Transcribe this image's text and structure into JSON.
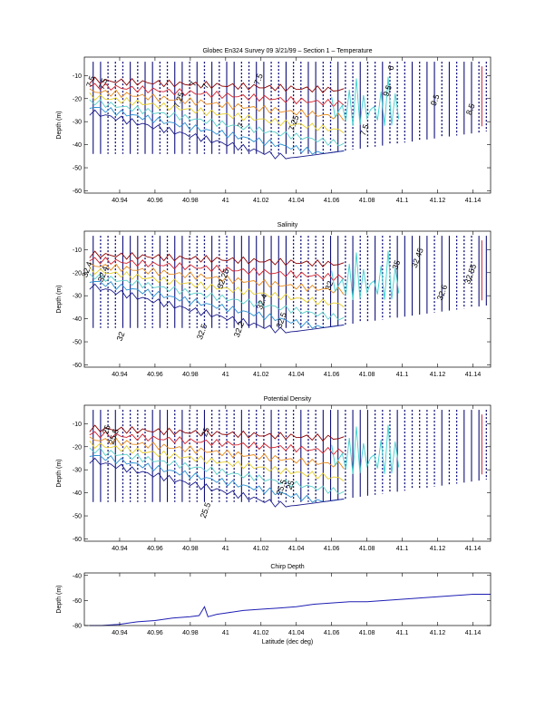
{
  "chart_data": [
    {
      "type": "contour",
      "title": "Globec En324 Survey 09 3/21/99 – Section 1 – Temperature",
      "xlabel": "",
      "ylabel": "Depth (m)",
      "xlim": [
        40.92,
        41.15
      ],
      "ylim": [
        -61,
        -2
      ],
      "xticks": [
        "40.94",
        "40.96",
        "40.98",
        "41",
        "41.02",
        "41.04",
        "41.06",
        "41.08",
        "41.1",
        "41.12",
        "41.14"
      ],
      "yticks": [
        "-10",
        "-20",
        "-30",
        "-40",
        "-50",
        "-60"
      ],
      "contour_labels": [
        {
          "text": "7.5",
          "x": 40.925,
          "y": -13
        },
        {
          "text": "7.5",
          "x": 40.932,
          "y": -14
        },
        {
          "text": "7.25",
          "x": 40.975,
          "y": -21
        },
        {
          "text": "7",
          "x": 40.983,
          "y": -14
        },
        {
          "text": "7",
          "x": 40.99,
          "y": -15
        },
        {
          "text": "7.5",
          "x": 41.02,
          "y": -12
        },
        {
          "text": "7",
          "x": 41.01,
          "y": -32
        },
        {
          "text": "7.25",
          "x": 41.04,
          "y": -31
        },
        {
          "text": "7.5",
          "x": 41.08,
          "y": -34
        },
        {
          "text": "6",
          "x": 41.095,
          "y": -7
        },
        {
          "text": "9.5",
          "x": 41.093,
          "y": -17
        },
        {
          "text": "9.5",
          "x": 41.12,
          "y": -21
        },
        {
          "text": "8.5",
          "x": 41.14,
          "y": -25
        }
      ]
    },
    {
      "type": "contour",
      "title": "Salinity",
      "xlabel": "",
      "ylabel": "Depth (m)",
      "xlim": [
        40.92,
        41.15
      ],
      "ylim": [
        -61,
        -2
      ],
      "xticks": [
        "40.94",
        "40.96",
        "40.98",
        "41",
        "41.02",
        "41.04",
        "41.06",
        "41.08",
        "41.1",
        "41.12",
        "41.14"
      ],
      "yticks": [
        "-10",
        "-20",
        "-30",
        "-40",
        "-50",
        "-60"
      ],
      "contour_labels": [
        {
          "text": "32.4",
          "x": 40.923,
          "y": -19
        },
        {
          "text": "32.4",
          "x": 40.932,
          "y": -21
        },
        {
          "text": "32",
          "x": 40.942,
          "y": -48
        },
        {
          "text": "32.25",
          "x": 41.0,
          "y": -23
        },
        {
          "text": "32.5",
          "x": 40.988,
          "y": -46
        },
        {
          "text": "32.2",
          "x": 41.009,
          "y": -45
        },
        {
          "text": "32.4",
          "x": 41.022,
          "y": -33
        },
        {
          "text": "32.5",
          "x": 41.033,
          "y": -41
        },
        {
          "text": "32",
          "x": 41.06,
          "y": -26
        },
        {
          "text": "35",
          "x": 41.098,
          "y": -17
        },
        {
          "text": "32.45",
          "x": 41.11,
          "y": -14
        },
        {
          "text": "32.6",
          "x": 41.124,
          "y": -29
        },
        {
          "text": "32.55",
          "x": 41.14,
          "y": -21
        }
      ]
    },
    {
      "type": "contour",
      "title": "Potential Density",
      "xlabel": "",
      "ylabel": "Depth (m)",
      "xlim": [
        40.92,
        41.15
      ],
      "ylim": [
        -61,
        -2
      ],
      "xticks": [
        "40.94",
        "40.96",
        "40.98",
        "41",
        "41.02",
        "41.04",
        "41.06",
        "41.08",
        "41.1",
        "41.12",
        "41.14"
      ],
      "yticks": [
        "-10",
        "-20",
        "-30",
        "-40",
        "-50",
        "-60"
      ],
      "contour_labels": [
        {
          "text": "25",
          "x": 40.934,
          "y": -13
        },
        {
          "text": "25.5",
          "x": 40.938,
          "y": -16
        },
        {
          "text": "25",
          "x": 40.99,
          "y": -14
        },
        {
          "text": "25.5",
          "x": 40.99,
          "y": -48
        },
        {
          "text": "25.5",
          "x": 41.033,
          "y": -38
        },
        {
          "text": "25",
          "x": 41.038,
          "y": -37
        }
      ]
    },
    {
      "type": "line",
      "title": "Chirp Depth",
      "xlabel": "Latitude (dec deg)",
      "ylabel": "Depth (m)",
      "xlim": [
        40.92,
        41.15
      ],
      "ylim": [
        -80,
        -38
      ],
      "xticks": [
        "40.94",
        "40.96",
        "40.98",
        "41",
        "41.02",
        "41.04",
        "41.06",
        "41.08",
        "41.1",
        "41.12",
        "41.14"
      ],
      "yticks": [
        "-40",
        "-60",
        "-80"
      ],
      "series": [
        {
          "x": [
            40.923,
            40.93,
            40.94,
            40.95,
            40.96,
            40.97,
            40.98,
            40.985,
            40.988,
            40.99,
            40.995,
            41.0,
            41.01,
            41.02,
            41.03,
            41.04,
            41.05,
            41.06,
            41.07,
            41.08,
            41.09,
            41.1,
            41.11,
            41.12,
            41.13,
            41.14,
            41.15
          ],
          "values": [
            -80,
            -80,
            -79,
            -77,
            -76,
            -74,
            -73,
            -72,
            -65,
            -73,
            -71,
            -70,
            -68,
            -67,
            -66,
            -65,
            -63,
            -62,
            -61,
            -61,
            -60,
            -59,
            -58,
            -57,
            -56,
            -55,
            -55
          ],
          "color": "#1f1fb4"
        }
      ]
    }
  ]
}
